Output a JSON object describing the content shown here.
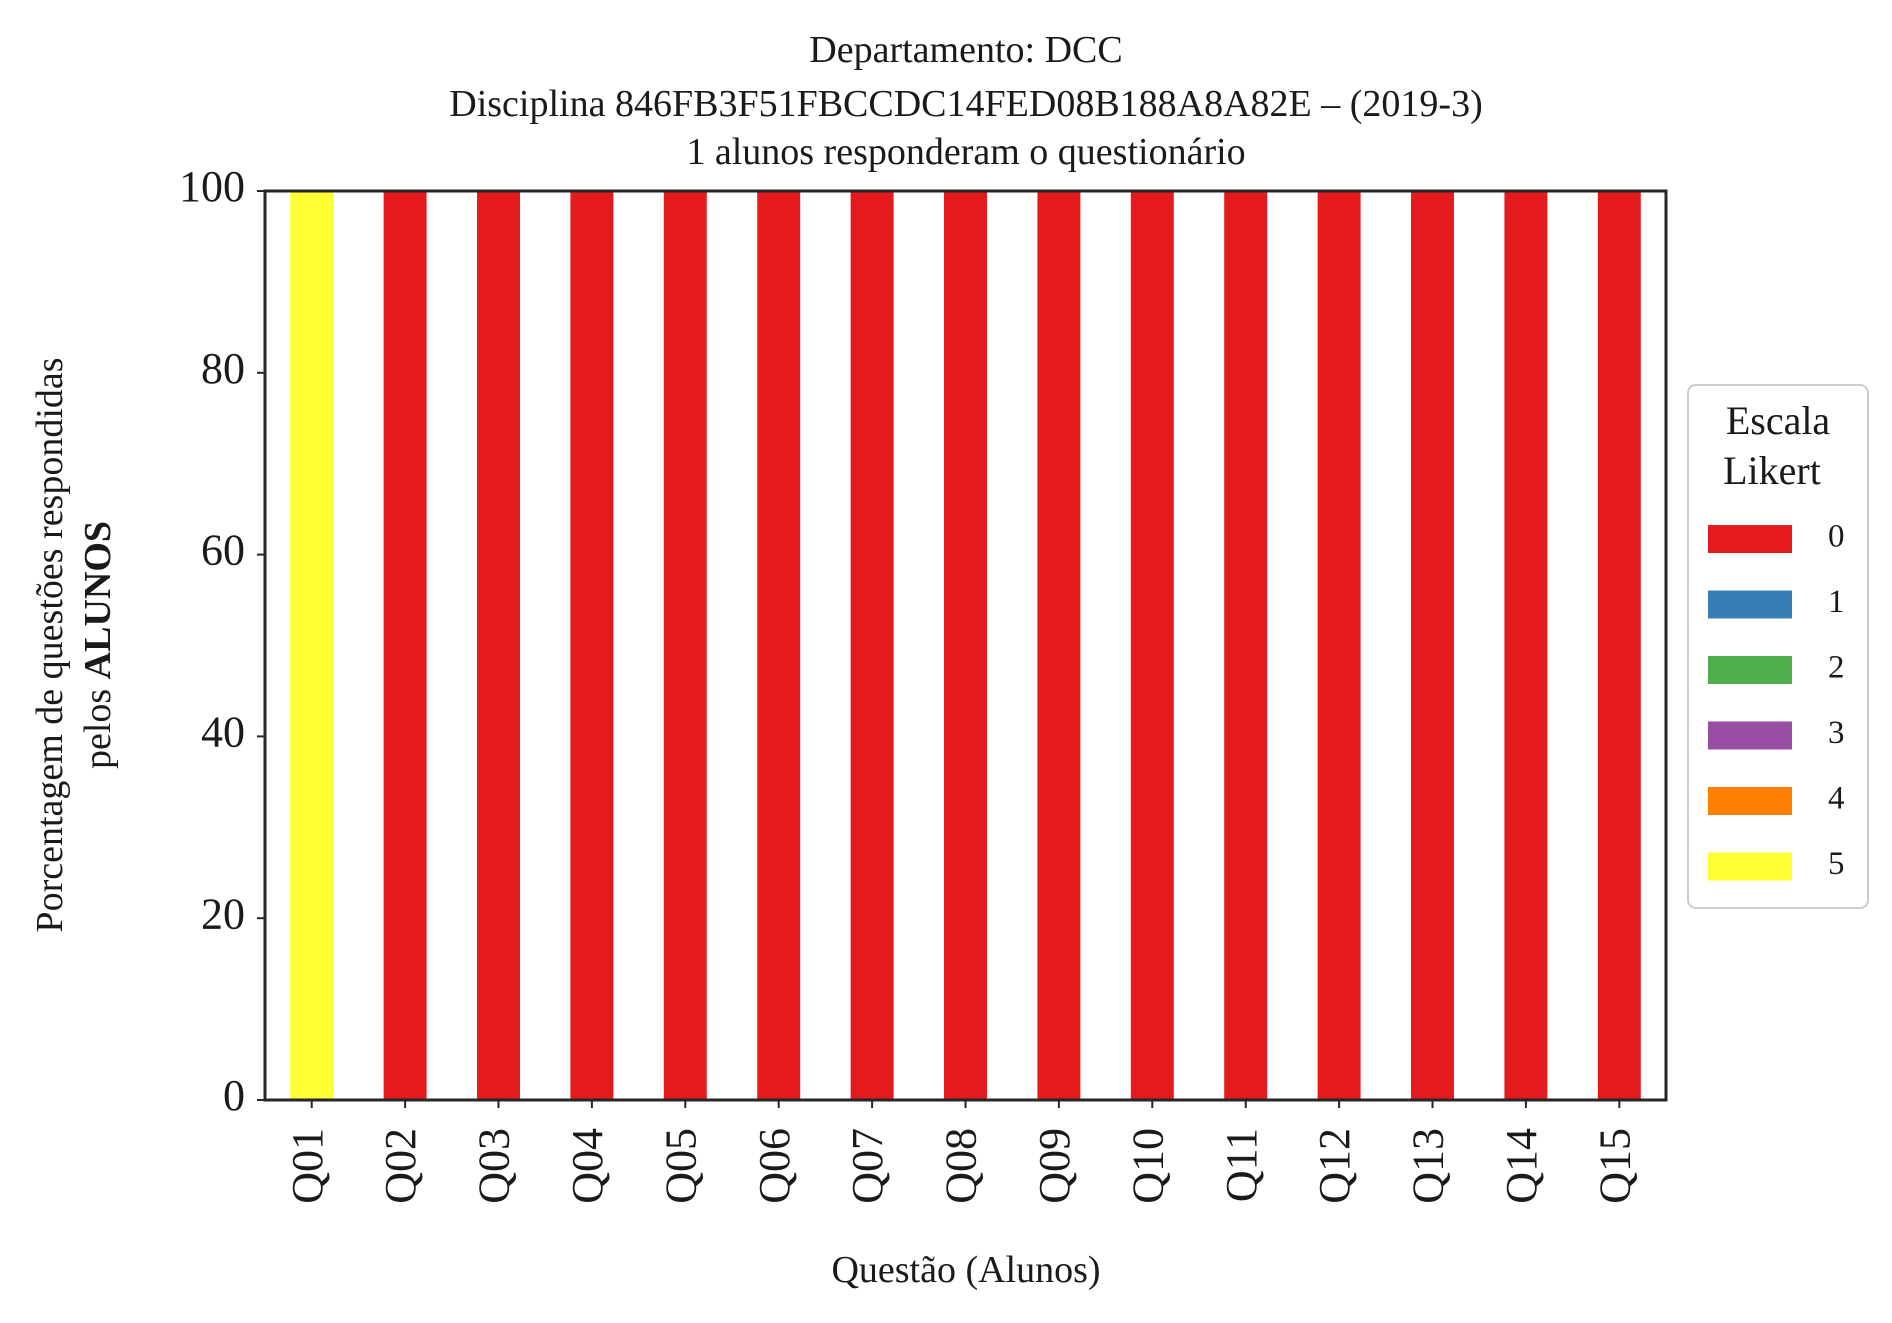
{
  "chart_data": {
    "type": "bar",
    "stacked": true,
    "title": "Departamento: DCC",
    "subtitle": "Disciplina 846FB3F51FBCCDC14FED08B188A8A82E – (2019-3)",
    "subtitle2": "1 alunos responderam o questionário",
    "xlabel": "Questão (Alunos)",
    "ylabel_line1": "Porcentagem de questões respondidas",
    "ylabel_line2_prefix": "pelos ",
    "ylabel_line2_bold": "ALUNOS",
    "ylim": [
      0,
      100
    ],
    "yticks": [
      "0",
      "20",
      "40",
      "60",
      "80",
      "100"
    ],
    "categories": [
      "Q01",
      "Q02",
      "Q03",
      "Q04",
      "Q05",
      "Q06",
      "Q07",
      "Q08",
      "Q09",
      "Q10",
      "Q11",
      "Q12",
      "Q13",
      "Q14",
      "Q15"
    ],
    "series": [
      {
        "name": "0",
        "color": "#e41a1c",
        "values": [
          0,
          100,
          100,
          100,
          100,
          100,
          100,
          100,
          100,
          100,
          100,
          100,
          100,
          100,
          100
        ]
      },
      {
        "name": "1",
        "color": "#377eb8",
        "values": [
          0,
          0,
          0,
          0,
          0,
          0,
          0,
          0,
          0,
          0,
          0,
          0,
          0,
          0,
          0
        ]
      },
      {
        "name": "2",
        "color": "#4daf4a",
        "values": [
          0,
          0,
          0,
          0,
          0,
          0,
          0,
          0,
          0,
          0,
          0,
          0,
          0,
          0,
          0
        ]
      },
      {
        "name": "3",
        "color": "#984ea3",
        "values": [
          0,
          0,
          0,
          0,
          0,
          0,
          0,
          0,
          0,
          0,
          0,
          0,
          0,
          0,
          0
        ]
      },
      {
        "name": "4",
        "color": "#ff7f00",
        "values": [
          0,
          0,
          0,
          0,
          0,
          0,
          0,
          0,
          0,
          0,
          0,
          0,
          0,
          0,
          0
        ]
      },
      {
        "name": "5",
        "color": "#ffff33",
        "values": [
          100,
          0,
          0,
          0,
          0,
          0,
          0,
          0,
          0,
          0,
          0,
          0,
          0,
          0,
          0
        ]
      }
    ],
    "legend_title_line1": "Escala",
    "legend_title_line2": "Likert",
    "legend_position": "center-right",
    "grid": false
  }
}
